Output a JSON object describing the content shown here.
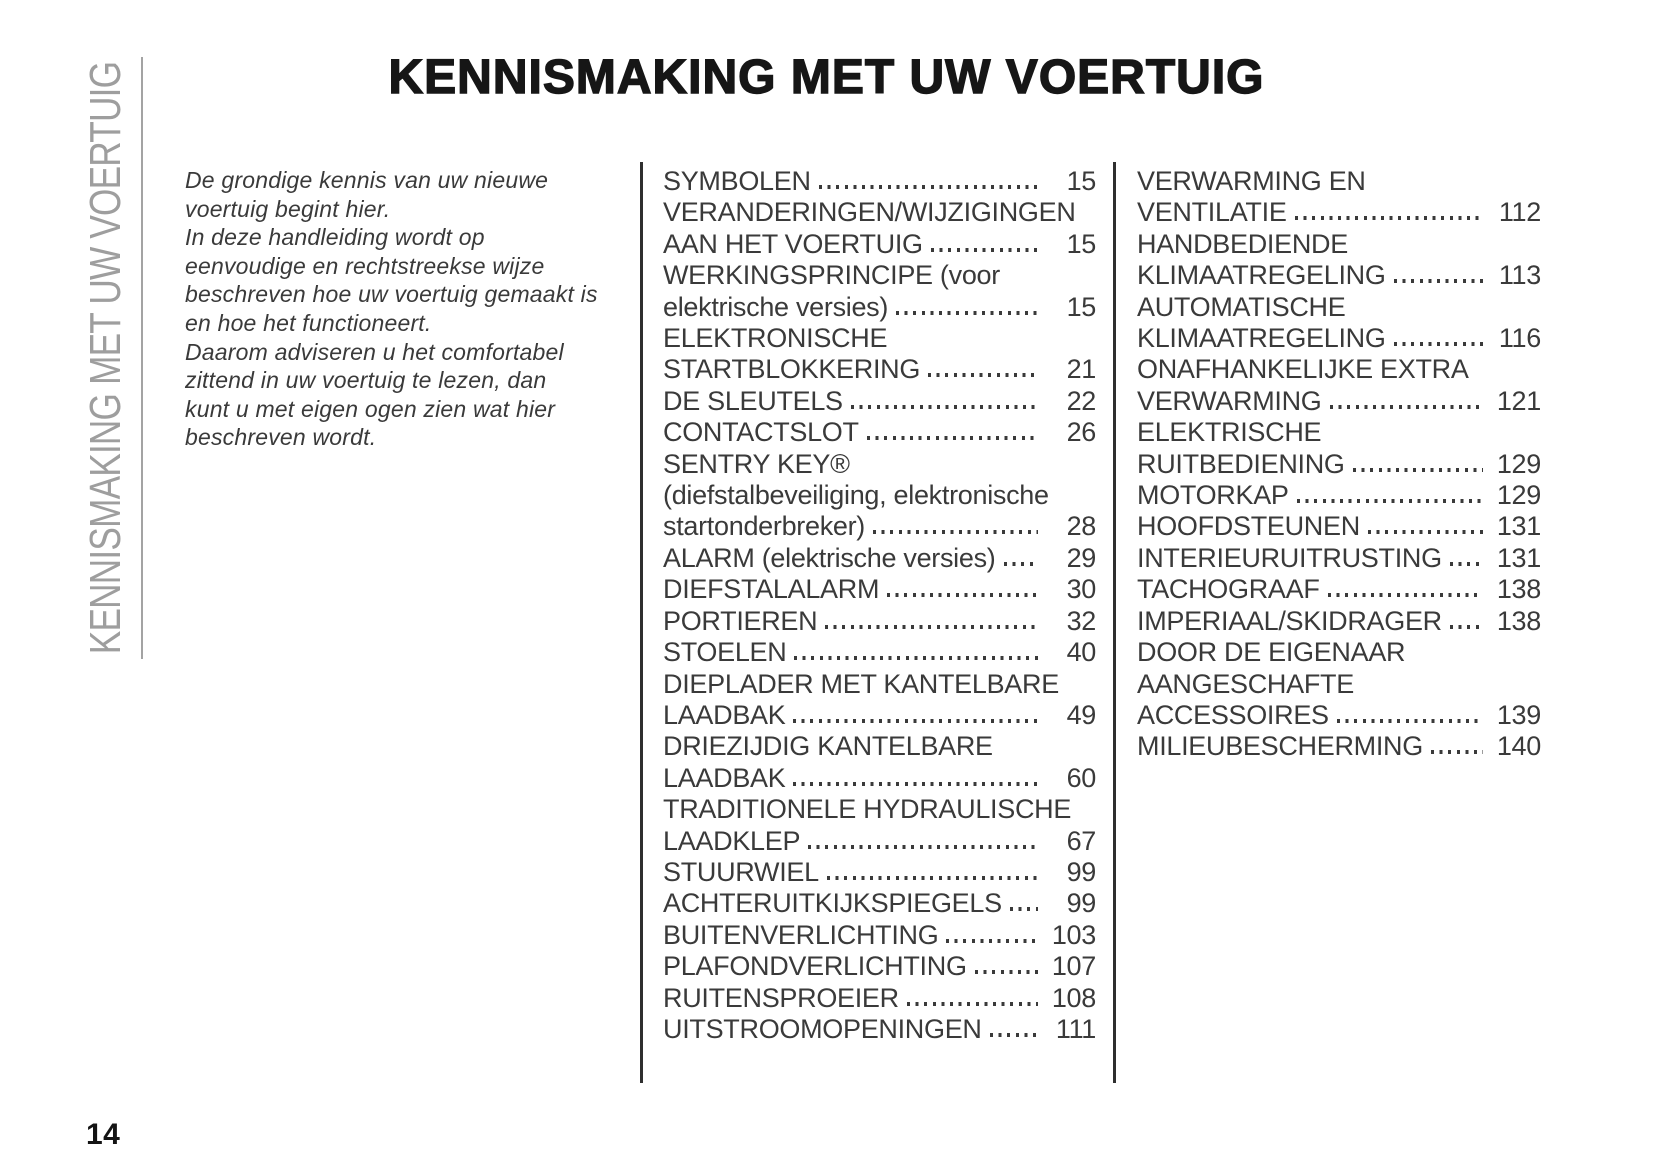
{
  "page": {
    "title": "KENNISMAKING MET UW VOERTUIG",
    "sidebar_label": "KENNISMAKING MET UW VOERTUIG",
    "page_number": "14"
  },
  "intro": {
    "paragraph_lines": [
      "De grondige kennis van uw nieuwe",
      "voertuig begint hier.",
      "In deze handleiding wordt op",
      "eenvoudige en rechtstreekse wijze",
      "beschreven hoe uw voertuig gemaakt is",
      "en hoe het functioneert.",
      "Daarom adviseren u het comfortabel",
      "zittend in uw voertuig te lezen, dan",
      "kunt u met eigen ogen zien wat hier",
      "beschreven wordt."
    ]
  },
  "toc": {
    "columns": [
      {
        "entries": [
          {
            "lines": [
              "SYMBOLEN"
            ],
            "page": "15"
          },
          {
            "lines": [
              "VERANDERINGEN/WIJZIGINGEN",
              "AAN HET VOERTUIG"
            ],
            "page": "15"
          },
          {
            "lines": [
              "WERKINGSPRINCIPE (voor",
              "elektrische versies)"
            ],
            "page": "15"
          },
          {
            "lines": [
              "ELEKTRONISCHE",
              "STARTBLOKKERING"
            ],
            "page": "21"
          },
          {
            "lines": [
              "DE SLEUTELS"
            ],
            "page": "22"
          },
          {
            "lines": [
              "CONTACTSLOT"
            ],
            "page": "26"
          },
          {
            "lines": [
              "SENTRY KEY®",
              "(diefstalbeveiliging, elektronische",
              "startonderbreker)"
            ],
            "page": "28"
          },
          {
            "lines": [
              "ALARM (elektrische versies)"
            ],
            "page": "29"
          },
          {
            "lines": [
              "DIEFSTALALARM"
            ],
            "page": "30"
          },
          {
            "lines": [
              "PORTIEREN"
            ],
            "page": "32"
          },
          {
            "lines": [
              "STOELEN"
            ],
            "page": "40"
          },
          {
            "lines": [
              "DIEPLADER MET KANTELBARE",
              "LAADBAK"
            ],
            "page": "49"
          },
          {
            "lines": [
              "DRIEZIJDIG KANTELBARE",
              "LAADBAK"
            ],
            "page": "60"
          },
          {
            "lines": [
              "TRADITIONELE HYDRAULISCHE",
              "LAADKLEP"
            ],
            "page": "67"
          },
          {
            "lines": [
              "STUURWIEL"
            ],
            "page": "99"
          },
          {
            "lines": [
              "ACHTERUITKIJKSPIEGELS"
            ],
            "page": "99"
          },
          {
            "lines": [
              "BUITENVERLICHTING"
            ],
            "page": "103"
          },
          {
            "lines": [
              "PLAFONDVERLICHTING"
            ],
            "page": "107"
          },
          {
            "lines": [
              "RUITENSPROEIER"
            ],
            "page": "108"
          },
          {
            "lines": [
              "UITSTROOMOPENINGEN"
            ],
            "page": "111"
          }
        ]
      },
      {
        "entries": [
          {
            "lines": [
              "VERWARMING EN",
              "VENTILATIE"
            ],
            "page": "112"
          },
          {
            "lines": [
              "HANDBEDIENDE",
              "KLIMAATREGELING"
            ],
            "page": "113"
          },
          {
            "lines": [
              "AUTOMATISCHE",
              "KLIMAATREGELING"
            ],
            "page": "116"
          },
          {
            "lines": [
              "ONAFHANKELIJKE EXTRA",
              "VERWARMING"
            ],
            "page": "121"
          },
          {
            "lines": [
              "ELEKTRISCHE",
              "RUITBEDIENING"
            ],
            "page": "129"
          },
          {
            "lines": [
              "MOTORKAP"
            ],
            "page": "129"
          },
          {
            "lines": [
              "HOOFDSTEUNEN"
            ],
            "page": "131"
          },
          {
            "lines": [
              "INTERIEURUITRUSTING"
            ],
            "page": "131"
          },
          {
            "lines": [
              "TACHOGRAAF"
            ],
            "page": "138"
          },
          {
            "lines": [
              "IMPERIAAL/SKIDRAGER"
            ],
            "page": "138"
          },
          {
            "lines": [
              "DOOR DE EIGENAAR",
              "AANGESCHAFTE",
              "ACCESSOIRES"
            ],
            "page": "139"
          },
          {
            "lines": [
              "MILIEUBESCHERMING"
            ],
            "page": "140"
          }
        ]
      }
    ]
  },
  "colors": {
    "body_text": "#3a3a3a",
    "title_text": "#161616",
    "sidebar_text": "#9e9e9e",
    "divider": "#2f2f2f"
  }
}
